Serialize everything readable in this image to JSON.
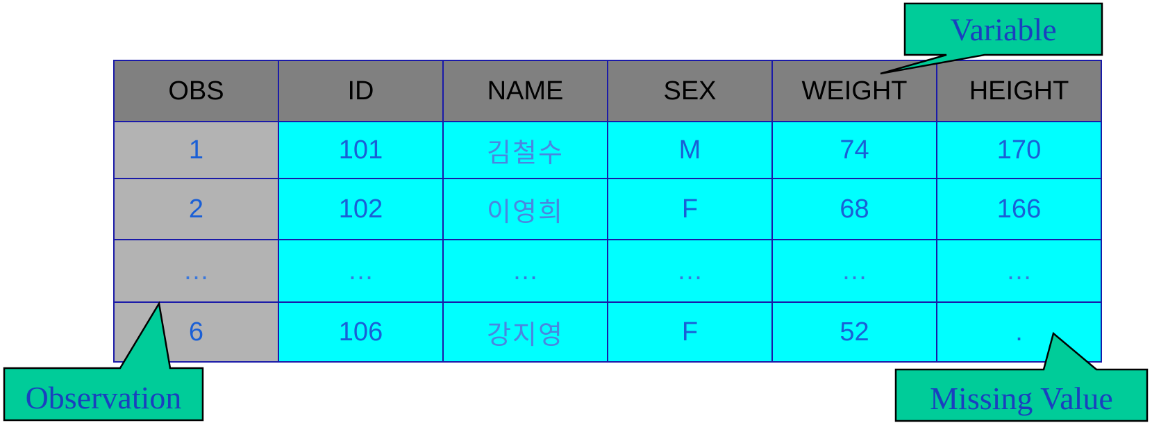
{
  "table": {
    "headers": [
      "OBS",
      "ID",
      "NAME",
      "SEX",
      "WEIGHT",
      "HEIGHT"
    ],
    "rows": [
      [
        "1",
        "101",
        "김철수",
        "M",
        "74",
        "170"
      ],
      [
        "2",
        "102",
        "이영희",
        "F",
        "68",
        "166"
      ],
      [
        "…",
        "…",
        "…",
        "…",
        "…",
        "…"
      ],
      [
        "6",
        "106",
        "강지영",
        "F",
        "52",
        "."
      ]
    ]
  },
  "callouts": {
    "variable": "Variable",
    "observation": "Observation",
    "missing_value": "Missing Value"
  },
  "colors": {
    "header_fill": "#808080",
    "obs_column_fill": "#b3b3b3",
    "data_fill": "#00ffff",
    "grid_line": "#1a1aa8",
    "callout_fill": "#00cc99",
    "callout_text": "#1a3fbf",
    "cell_text": "#1a5fd6"
  }
}
